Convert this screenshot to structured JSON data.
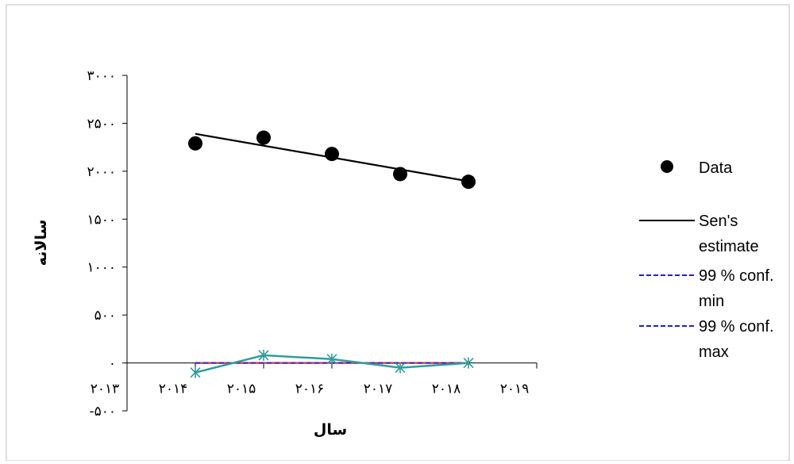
{
  "chart_data": {
    "type": "scatter",
    "xlabel": "سال",
    "ylabel": "سالانه",
    "xlim": [
      2013,
      2019
    ],
    "ylim": [
      -500,
      3000
    ],
    "x_ticks": [
      2013,
      2014,
      2015,
      2016,
      2017,
      2018,
      2019
    ],
    "x_tick_labels": [
      "۲۰۱۳",
      "۲۰۱۴",
      "۲۰۱۵",
      "۲۰۱۶",
      "۲۰۱۷",
      "۲۰۱۸",
      "۲۰۱۹"
    ],
    "y_ticks": [
      -500,
      0,
      500,
      1000,
      1500,
      2000,
      2500,
      3000
    ],
    "y_tick_labels": [
      "-۵۰۰",
      "۰",
      "۵۰۰",
      "۱۰۰۰",
      "۱۵۰۰",
      "۲۰۰۰",
      "۲۵۰۰",
      "۳۰۰۰"
    ],
    "grid": false,
    "legend_position": "right",
    "series": [
      {
        "name": "Data",
        "kind": "marker",
        "color": "#000000",
        "x": [
          2014,
          2015,
          2016,
          2017,
          2018
        ],
        "y": [
          2290,
          2350,
          2180,
          1970,
          1890
        ]
      },
      {
        "name": "Sen's estimate",
        "kind": "line",
        "color": "#000000",
        "x": [
          2014,
          2018
        ],
        "y": [
          2390,
          1895
        ]
      },
      {
        "name": "99 % conf. min",
        "kind": "dashed",
        "color": "#1f1fd6",
        "x": [
          2014,
          2018
        ],
        "y": [
          0,
          0
        ]
      },
      {
        "name": "99 % conf. max",
        "kind": "dashed",
        "color": "#1f1fd6",
        "x": [
          2014,
          2018
        ],
        "y": [
          0,
          0
        ]
      },
      {
        "name": "",
        "kind": "line",
        "color": "#e0302a",
        "x": [
          2014,
          2018
        ],
        "y": [
          0,
          0
        ]
      },
      {
        "name": "",
        "kind": "line-x",
        "color": "#2f9e9a",
        "x": [
          2014,
          2015,
          2016,
          2017,
          2018
        ],
        "y": [
          -100,
          80,
          40,
          -50,
          0
        ]
      }
    ]
  }
}
